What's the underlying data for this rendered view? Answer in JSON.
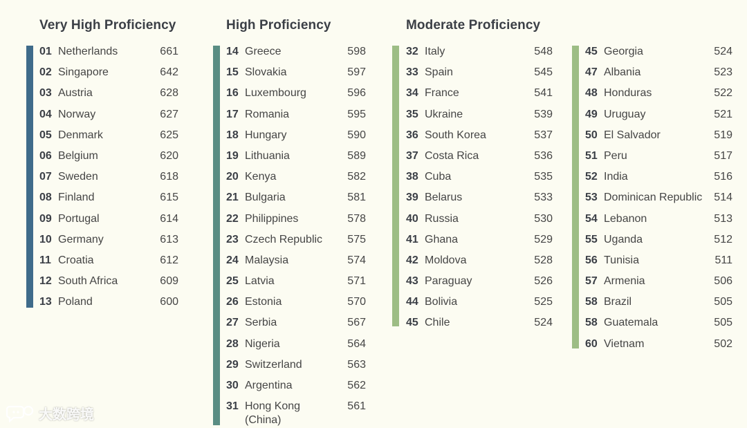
{
  "colors": {
    "background": "#fcfcf2",
    "very_high": "#3f6b8a",
    "high": "#5a8d83",
    "moderate": "#9dbd85"
  },
  "columns": [
    {
      "title": "Very High Proficiency",
      "bar_color": "#3f6b8a",
      "rows": [
        {
          "rank": "01",
          "country": "Netherlands",
          "score": "661"
        },
        {
          "rank": "02",
          "country": "Singapore",
          "score": "642"
        },
        {
          "rank": "03",
          "country": "Austria",
          "score": "628"
        },
        {
          "rank": "04",
          "country": "Norway",
          "score": "627"
        },
        {
          "rank": "05",
          "country": "Denmark",
          "score": "625"
        },
        {
          "rank": "06",
          "country": "Belgium",
          "score": "620"
        },
        {
          "rank": "07",
          "country": "Sweden",
          "score": "618"
        },
        {
          "rank": "08",
          "country": "Finland",
          "score": "615"
        },
        {
          "rank": "09",
          "country": "Portugal",
          "score": "614"
        },
        {
          "rank": "10",
          "country": "Germany",
          "score": "613"
        },
        {
          "rank": "11",
          "country": "Croatia",
          "score": "612"
        },
        {
          "rank": "12",
          "country": "South Africa",
          "score": "609"
        },
        {
          "rank": "13",
          "country": "Poland",
          "score": "600"
        }
      ]
    },
    {
      "title": "High Proficiency",
      "bar_color": "#5a8d83",
      "rows": [
        {
          "rank": "14",
          "country": "Greece",
          "score": "598"
        },
        {
          "rank": "15",
          "country": "Slovakia",
          "score": "597"
        },
        {
          "rank": "16",
          "country": "Luxembourg",
          "score": "596"
        },
        {
          "rank": "17",
          "country": "Romania",
          "score": "595"
        },
        {
          "rank": "18",
          "country": "Hungary",
          "score": "590"
        },
        {
          "rank": "19",
          "country": "Lithuania",
          "score": "589"
        },
        {
          "rank": "20",
          "country": "Kenya",
          "score": "582"
        },
        {
          "rank": "21",
          "country": "Bulgaria",
          "score": "581"
        },
        {
          "rank": "22",
          "country": "Philippines",
          "score": "578"
        },
        {
          "rank": "23",
          "country": "Czech Republic",
          "score": "575"
        },
        {
          "rank": "24",
          "country": "Malaysia",
          "score": "574"
        },
        {
          "rank": "25",
          "country": "Latvia",
          "score": "571"
        },
        {
          "rank": "26",
          "country": "Estonia",
          "score": "570"
        },
        {
          "rank": "27",
          "country": "Serbia",
          "score": "567"
        },
        {
          "rank": "28",
          "country": "Nigeria",
          "score": "564"
        },
        {
          "rank": "29",
          "country": "Switzerland",
          "score": "563"
        },
        {
          "rank": "30",
          "country": "Argentina",
          "score": "562"
        },
        {
          "rank": "31",
          "country": "Hong Kong (China)",
          "score": "561"
        }
      ]
    },
    {
      "title": "Moderate Proficiency",
      "bar_color": "#9dbd85",
      "rows": [
        {
          "rank": "32",
          "country": "Italy",
          "score": "548"
        },
        {
          "rank": "33",
          "country": "Spain",
          "score": "545"
        },
        {
          "rank": "34",
          "country": "France",
          "score": "541"
        },
        {
          "rank": "35",
          "country": "Ukraine",
          "score": "539"
        },
        {
          "rank": "36",
          "country": "South Korea",
          "score": "537"
        },
        {
          "rank": "37",
          "country": "Costa Rica",
          "score": "536"
        },
        {
          "rank": "38",
          "country": "Cuba",
          "score": "535"
        },
        {
          "rank": "39",
          "country": "Belarus",
          "score": "533"
        },
        {
          "rank": "40",
          "country": "Russia",
          "score": "530"
        },
        {
          "rank": "41",
          "country": "Ghana",
          "score": "529"
        },
        {
          "rank": "42",
          "country": "Moldova",
          "score": "528"
        },
        {
          "rank": "43",
          "country": "Paraguay",
          "score": "526"
        },
        {
          "rank": "44",
          "country": "Bolivia",
          "score": "525"
        },
        {
          "rank": "45",
          "country": "Chile",
          "score": "524"
        }
      ]
    },
    {
      "title": "",
      "bar_color": "#9dbd85",
      "rows": [
        {
          "rank": "45",
          "country": "Georgia",
          "score": "524"
        },
        {
          "rank": "47",
          "country": "Albania",
          "score": "523"
        },
        {
          "rank": "48",
          "country": "Honduras",
          "score": "522"
        },
        {
          "rank": "49",
          "country": "Uruguay",
          "score": "521"
        },
        {
          "rank": "50",
          "country": "El Salvador",
          "score": "519"
        },
        {
          "rank": "51",
          "country": "Peru",
          "score": "517"
        },
        {
          "rank": "52",
          "country": "India",
          "score": "516"
        },
        {
          "rank": "53",
          "country": "Dominican Republic",
          "score": "514"
        },
        {
          "rank": "54",
          "country": "Lebanon",
          "score": "513"
        },
        {
          "rank": "55",
          "country": "Uganda",
          "score": "512"
        },
        {
          "rank": "56",
          "country": "Tunisia",
          "score": "511"
        },
        {
          "rank": "57",
          "country": "Armenia",
          "score": "506"
        },
        {
          "rank": "58",
          "country": "Brazil",
          "score": "505"
        },
        {
          "rank": "58",
          "country": "Guatemala",
          "score": "505"
        },
        {
          "rank": "60",
          "country": "Vietnam",
          "score": "502"
        }
      ]
    }
  ],
  "watermark": {
    "text": "大数跨境",
    "icon": "chat-bubble-logo-icon"
  }
}
